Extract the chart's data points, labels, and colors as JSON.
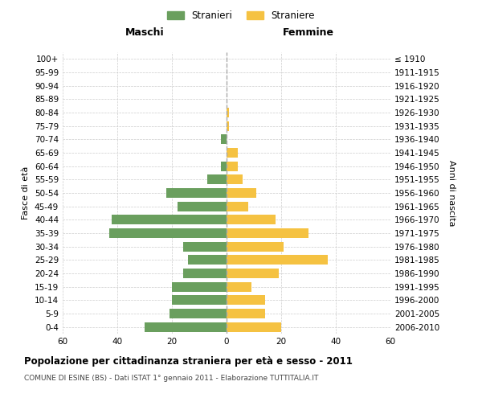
{
  "age_groups": [
    "0-4",
    "5-9",
    "10-14",
    "15-19",
    "20-24",
    "25-29",
    "30-34",
    "35-39",
    "40-44",
    "45-49",
    "50-54",
    "55-59",
    "60-64",
    "65-69",
    "70-74",
    "75-79",
    "80-84",
    "85-89",
    "90-94",
    "95-99",
    "100+"
  ],
  "birth_years": [
    "2006-2010",
    "2001-2005",
    "1996-2000",
    "1991-1995",
    "1986-1990",
    "1981-1985",
    "1976-1980",
    "1971-1975",
    "1966-1970",
    "1961-1965",
    "1956-1960",
    "1951-1955",
    "1946-1950",
    "1941-1945",
    "1936-1940",
    "1931-1935",
    "1926-1930",
    "1921-1925",
    "1916-1920",
    "1911-1915",
    "≤ 1910"
  ],
  "maschi": [
    30,
    21,
    20,
    20,
    16,
    14,
    16,
    43,
    42,
    18,
    22,
    7,
    2,
    0,
    2,
    0,
    0,
    0,
    0,
    0,
    0
  ],
  "femmine": [
    20,
    14,
    14,
    9,
    19,
    37,
    21,
    30,
    18,
    8,
    11,
    6,
    4,
    4,
    0,
    1,
    1,
    0,
    0,
    0,
    0
  ],
  "male_color": "#6a9f5e",
  "female_color": "#f5c242",
  "title_main": "Popolazione per cittadinanza straniera per età e sesso - 2011",
  "title_sub": "COMUNE DI ESINE (BS) - Dati ISTAT 1° gennaio 2011 - Elaborazione TUTTITALIA.IT",
  "legend_male": "Stranieri",
  "legend_female": "Straniere",
  "xlabel_left": "Maschi",
  "xlabel_right": "Femmine",
  "ylabel_left": "Fasce di età",
  "ylabel_right": "Anni di nascita",
  "xlim": 60,
  "grid_color": "#cccccc",
  "background_color": "#ffffff"
}
